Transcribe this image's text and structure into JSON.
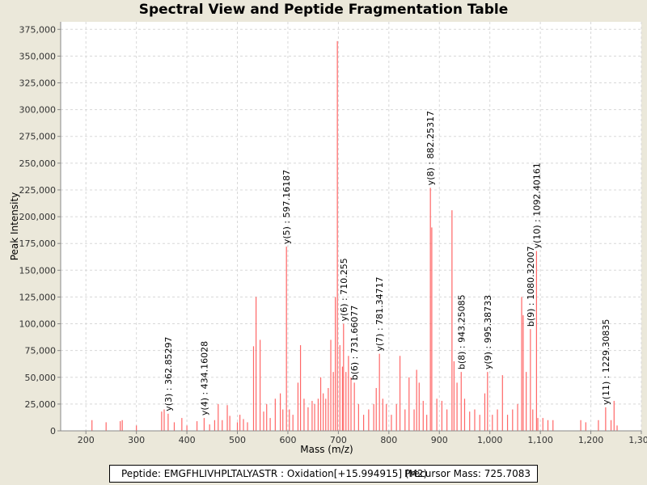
{
  "chart_data": {
    "type": "bar",
    "title": "Spectral View and Peptide Fragmentation Table",
    "xlabel": "Mass (m/z)",
    "ylabel": "Peak Intensity",
    "xlim": [
      150,
      1300
    ],
    "ylim": [
      0,
      382000
    ],
    "x_ticks": [
      200,
      300,
      400,
      500,
      600,
      700,
      800,
      900,
      1000,
      1100,
      1200,
      1300
    ],
    "x_tick_labels": [
      "200",
      "300",
      "400",
      "500",
      "600",
      "700",
      "800",
      "900",
      "1,000",
      "1,100",
      "1,200",
      "1,300"
    ],
    "y_ticks": [
      0,
      25000,
      50000,
      75000,
      100000,
      125000,
      150000,
      175000,
      200000,
      225000,
      250000,
      275000,
      300000,
      325000,
      350000,
      375000
    ],
    "y_tick_labels": [
      "0",
      "25,000",
      "50,000",
      "75,000",
      "100,000",
      "125,000",
      "150,000",
      "175,000",
      "200,000",
      "225,000",
      "250,000",
      "275,000",
      "300,000",
      "325,000",
      "350,000",
      "375,000"
    ],
    "bar_color": "#ff6666",
    "peaks": [
      [
        212,
        10000
      ],
      [
        240,
        8000
      ],
      [
        268,
        9000
      ],
      [
        272,
        10000
      ],
      [
        300,
        5000
      ],
      [
        350,
        18000
      ],
      [
        355,
        20000
      ],
      [
        362.85,
        16000
      ],
      [
        375,
        8000
      ],
      [
        390,
        12000
      ],
      [
        400,
        5000
      ],
      [
        420,
        9000
      ],
      [
        434.16,
        12000
      ],
      [
        445,
        6000
      ],
      [
        455,
        10000
      ],
      [
        462,
        25000
      ],
      [
        470,
        10000
      ],
      [
        480,
        24000
      ],
      [
        485,
        14000
      ],
      [
        500,
        8000
      ],
      [
        505,
        15000
      ],
      [
        512,
        11000
      ],
      [
        520,
        8000
      ],
      [
        532,
        79000
      ],
      [
        537,
        125000
      ],
      [
        545,
        85000
      ],
      [
        552,
        18000
      ],
      [
        558,
        25000
      ],
      [
        565,
        12000
      ],
      [
        575,
        30000
      ],
      [
        585,
        35000
      ],
      [
        590,
        20000
      ],
      [
        597.16,
        172000
      ],
      [
        603,
        20000
      ],
      [
        610,
        15000
      ],
      [
        620,
        45000
      ],
      [
        625,
        80000
      ],
      [
        632,
        30000
      ],
      [
        640,
        22000
      ],
      [
        648,
        28000
      ],
      [
        653,
        25000
      ],
      [
        660,
        30000
      ],
      [
        665,
        50000
      ],
      [
        670,
        35000
      ],
      [
        675,
        30000
      ],
      [
        680,
        40000
      ],
      [
        685,
        85000
      ],
      [
        690,
        55000
      ],
      [
        694,
        125000
      ],
      [
        698,
        364000
      ],
      [
        703,
        80000
      ],
      [
        708,
        60000
      ],
      [
        710.26,
        100000
      ],
      [
        715,
        55000
      ],
      [
        720,
        70000
      ],
      [
        725,
        50000
      ],
      [
        731.66,
        45000
      ],
      [
        740,
        25000
      ],
      [
        750,
        15000
      ],
      [
        760,
        20000
      ],
      [
        770,
        25000
      ],
      [
        775,
        40000
      ],
      [
        781.35,
        72000
      ],
      [
        788,
        30000
      ],
      [
        795,
        25000
      ],
      [
        805,
        15000
      ],
      [
        815,
        25000
      ],
      [
        822,
        70000
      ],
      [
        832,
        20000
      ],
      [
        840,
        50000
      ],
      [
        850,
        20000
      ],
      [
        855,
        57000
      ],
      [
        860,
        45000
      ],
      [
        868,
        28000
      ],
      [
        875,
        15000
      ],
      [
        882.25,
        227000
      ],
      [
        885,
        190000
      ],
      [
        895,
        30000
      ],
      [
        905,
        28000
      ],
      [
        915,
        20000
      ],
      [
        925,
        206000
      ],
      [
        929,
        65000
      ],
      [
        935,
        45000
      ],
      [
        943.25,
        55000
      ],
      [
        950,
        30000
      ],
      [
        960,
        18000
      ],
      [
        970,
        20000
      ],
      [
        980,
        15000
      ],
      [
        990,
        35000
      ],
      [
        995.39,
        55000
      ],
      [
        1005,
        15000
      ],
      [
        1015,
        20000
      ],
      [
        1025,
        52000
      ],
      [
        1035,
        15000
      ],
      [
        1045,
        20000
      ],
      [
        1055,
        25000
      ],
      [
        1063,
        125000
      ],
      [
        1066,
        108000
      ],
      [
        1072,
        55000
      ],
      [
        1080.32,
        95000
      ],
      [
        1085,
        20000
      ],
      [
        1092.4,
        168000
      ],
      [
        1095,
        12000
      ],
      [
        1105,
        12000
      ],
      [
        1115,
        10000
      ],
      [
        1125,
        10000
      ],
      [
        1180,
        10000
      ],
      [
        1190,
        8000
      ],
      [
        1215,
        10000
      ],
      [
        1229.31,
        22000
      ],
      [
        1240,
        10000
      ],
      [
        1246,
        28000
      ],
      [
        1252,
        5000
      ]
    ],
    "annotations": [
      {
        "x": 362.85297,
        "y": 16000,
        "label": "y(3) : 362.85297"
      },
      {
        "x": 434.16028,
        "y": 12000,
        "label": "y(4) : 434.16028"
      },
      {
        "x": 597.16187,
        "y": 172000,
        "label": "y(5) : 597.16187"
      },
      {
        "x": 710.255,
        "y": 100000,
        "label": "y(6) : 710.255"
      },
      {
        "x": 731.66077,
        "y": 45000,
        "label": "b(6) : 731.66077"
      },
      {
        "x": 781.34717,
        "y": 72000,
        "label": "y(7) : 781.34717"
      },
      {
        "x": 882.25317,
        "y": 227000,
        "label": "y(8) : 882.25317"
      },
      {
        "x": 943.25085,
        "y": 55000,
        "label": "b(8) : 943.25085"
      },
      {
        "x": 995.38733,
        "y": 55000,
        "label": "y(9) : 995.38733"
      },
      {
        "x": 1080.32007,
        "y": 95000,
        "label": "b(9) : 1080.32007"
      },
      {
        "x": 1092.40161,
        "y": 168000,
        "label": "y(10) : 1092.40161"
      },
      {
        "x": 1229.30835,
        "y": 22000,
        "label": "y(11) : 1229.30835"
      }
    ]
  },
  "footer": {
    "peptide": "Peptide: EMGFHLIVHPLTALYASTR : Oxidation[+15.994915] (M2)",
    "precursor": "Precursor Mass: 725.7083"
  }
}
